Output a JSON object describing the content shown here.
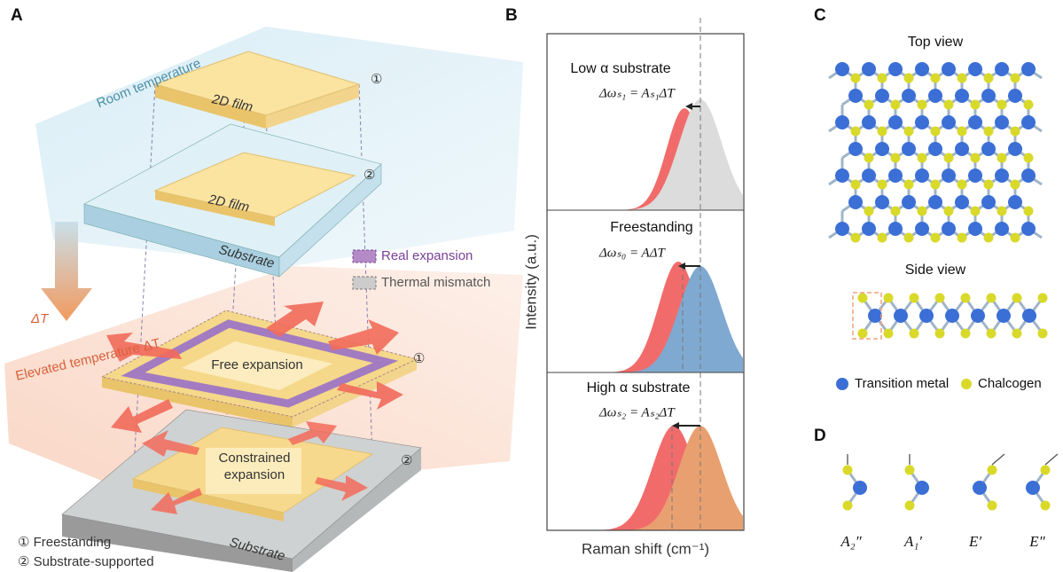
{
  "panels": {
    "a": "A",
    "b": "B",
    "c": "C",
    "d": "D"
  },
  "panel_a": {
    "room_temperature": "Room temperature",
    "film_labels": [
      "2D film",
      "2D film"
    ],
    "markers": [
      "①",
      "②",
      "①",
      "②"
    ],
    "substrate_labels": [
      "Substrate",
      "Substrate"
    ],
    "legend": [
      "Real expansion",
      "Thermal mismatch"
    ],
    "delta_t": "ΔT",
    "elevated_temperature": "Elevated temperature ΔT",
    "free_expansion": "Free expansion",
    "constrained_expansion": [
      "Constrained",
      "expansion"
    ],
    "key": [
      "① Freestanding",
      "② Substrate-supported"
    ]
  },
  "panel_b": {
    "sections": [
      {
        "title": "Low α substrate",
        "equation": "Δωₛ₁ = Aₛ₁ΔT"
      },
      {
        "title": "Freestanding",
        "equation": "Δωₛ₀ = AΔT"
      },
      {
        "title": "High α substrate",
        "equation": "Δωₛ₂ = Aₛ₂ΔT"
      }
    ],
    "y_label": "Intensity (a.u.)",
    "x_label": "Raman shift (cm⁻¹)"
  },
  "panel_c": {
    "top_view": "Top view",
    "side_view": "Side view",
    "legend": [
      "Transition metal",
      "Chalcogen"
    ]
  },
  "panel_d": {
    "modes": [
      "A₂″",
      "A₁′",
      "E′",
      "E″"
    ]
  }
}
